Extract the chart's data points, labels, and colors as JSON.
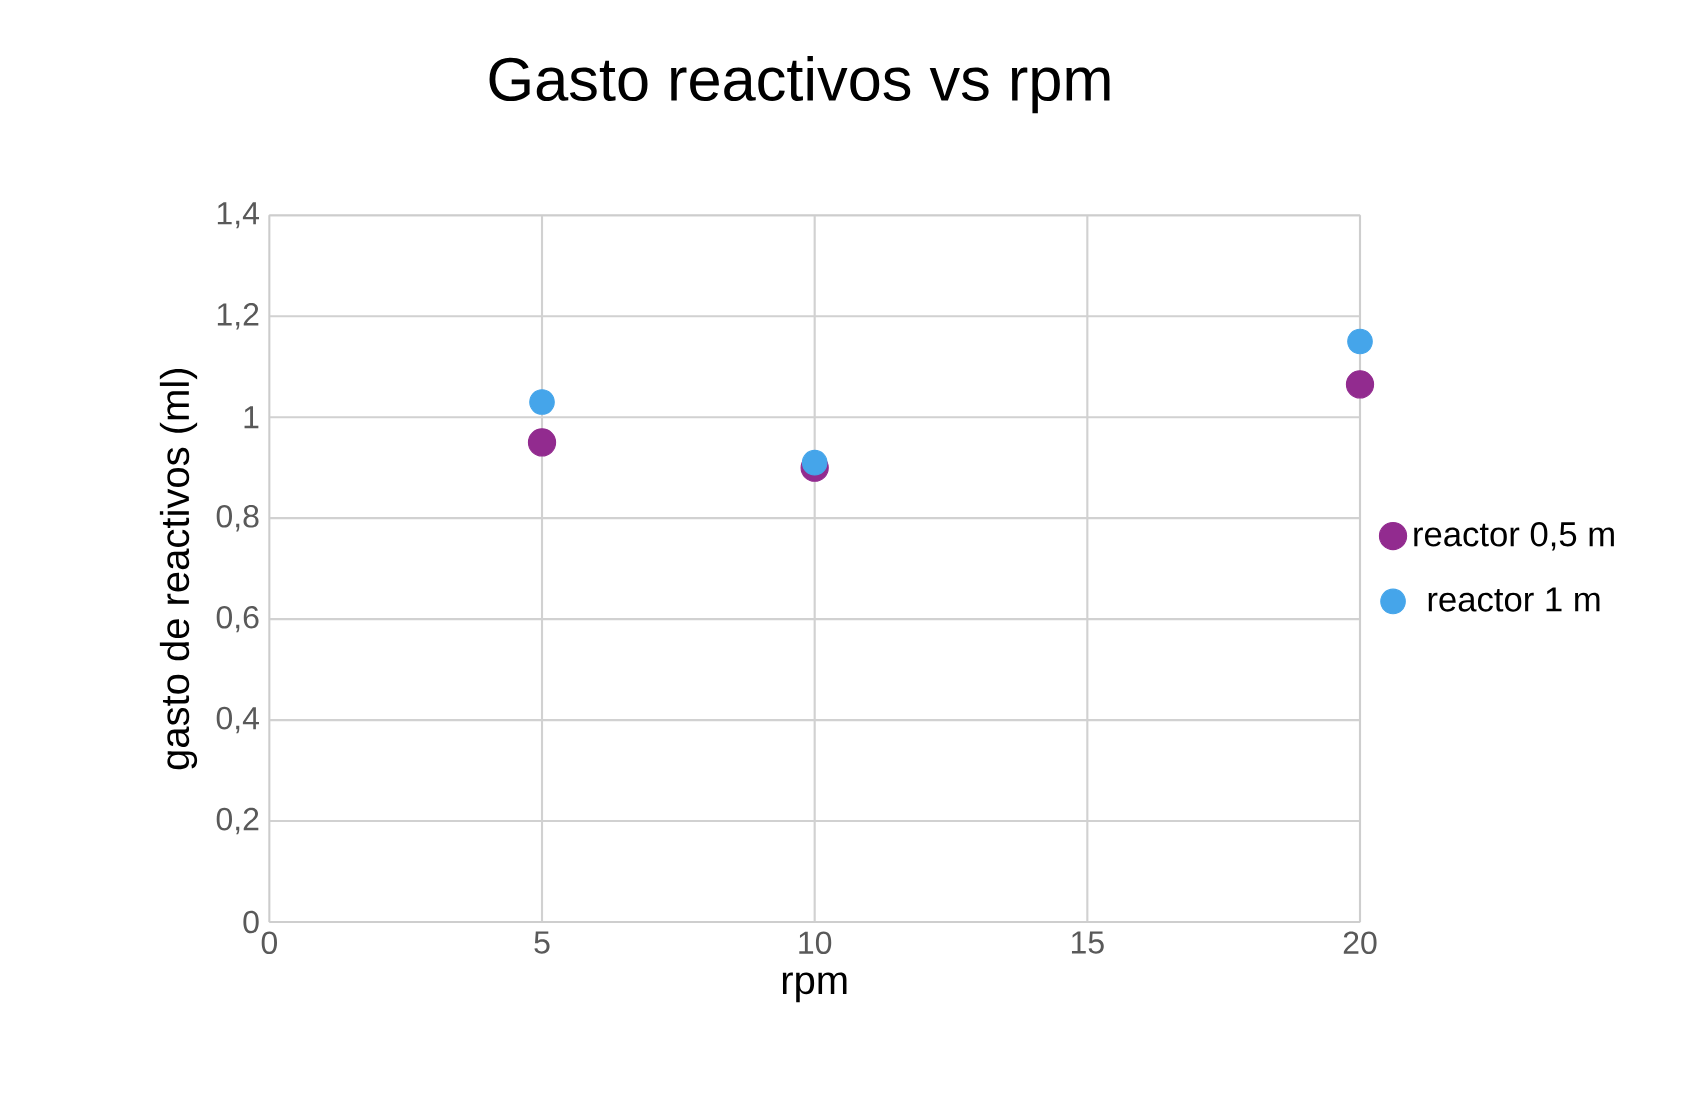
{
  "chart_data": {
    "type": "scatter",
    "title": "Gasto reactivos vs rpm",
    "xlabel": "rpm",
    "ylabel": "gasto de reactivos (ml)",
    "series": [
      {
        "name": "reactor 0,5 m",
        "color": "#922b8f",
        "x": [
          5,
          10,
          20
        ],
        "values": [
          0.95,
          0.9,
          1.065
        ]
      },
      {
        "name": "reactor 1 m",
        "color": "#45a5ea",
        "x": [
          5,
          10,
          20
        ],
        "values": [
          1.03,
          0.91,
          1.15
        ]
      }
    ],
    "xlim": [
      0,
      20
    ],
    "xticks": [
      0,
      5,
      10,
      15,
      20
    ],
    "ylim": [
      0,
      1.4
    ],
    "yticks": [
      0,
      {
        "value": 0.2,
        "label": "0,2"
      },
      {
        "value": 0.4,
        "label": "0,4"
      },
      {
        "value": 0.6,
        "label": "0,6"
      },
      {
        "value": 0.8,
        "label": "0,8"
      },
      1,
      {
        "value": 1.2,
        "label": "1,2"
      },
      {
        "value": 1.4,
        "label": "1,4"
      }
    ],
    "grid": true,
    "legend": "right",
    "marker": "circle"
  }
}
